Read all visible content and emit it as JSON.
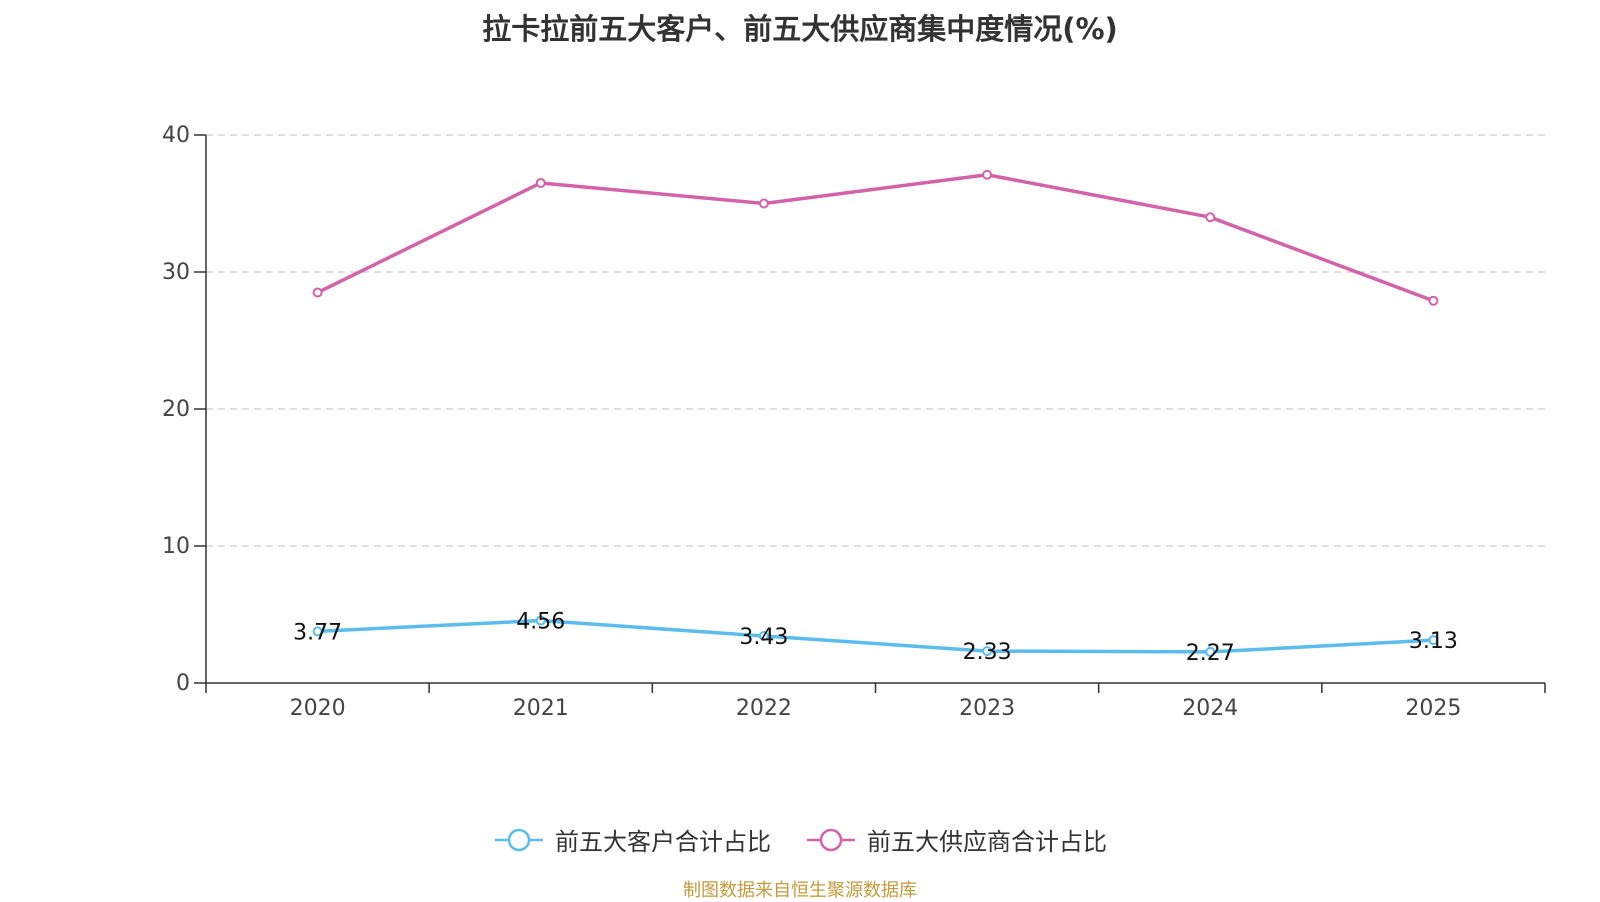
{
  "chart_data": {
    "type": "line",
    "title": "拉卡拉前五大客户、前五大供应商集中度情况(%)",
    "categories": [
      "2020",
      "2021",
      "2022",
      "2023",
      "2024",
      "2025"
    ],
    "ylim": [
      0,
      40
    ],
    "yticks": [
      0,
      10,
      20,
      30,
      40
    ],
    "grid": true,
    "legend_position": "bottom",
    "series": [
      {
        "name": "前五大客户合计占比",
        "color": "#5bbcee",
        "values": [
          3.77,
          4.56,
          3.43,
          2.33,
          2.27,
          3.13
        ],
        "labels": [
          "3.77",
          "4.56",
          "3.43",
          "2.33",
          "2.27",
          "3.13"
        ],
        "show_labels": true
      },
      {
        "name": "前五大供应商合计占比",
        "color": "#d462ab",
        "values": [
          28.5,
          36.5,
          35.0,
          37.1,
          34.0,
          27.9
        ],
        "show_labels": false
      }
    ]
  },
  "source_note": "制图数据来自恒生聚源数据库"
}
